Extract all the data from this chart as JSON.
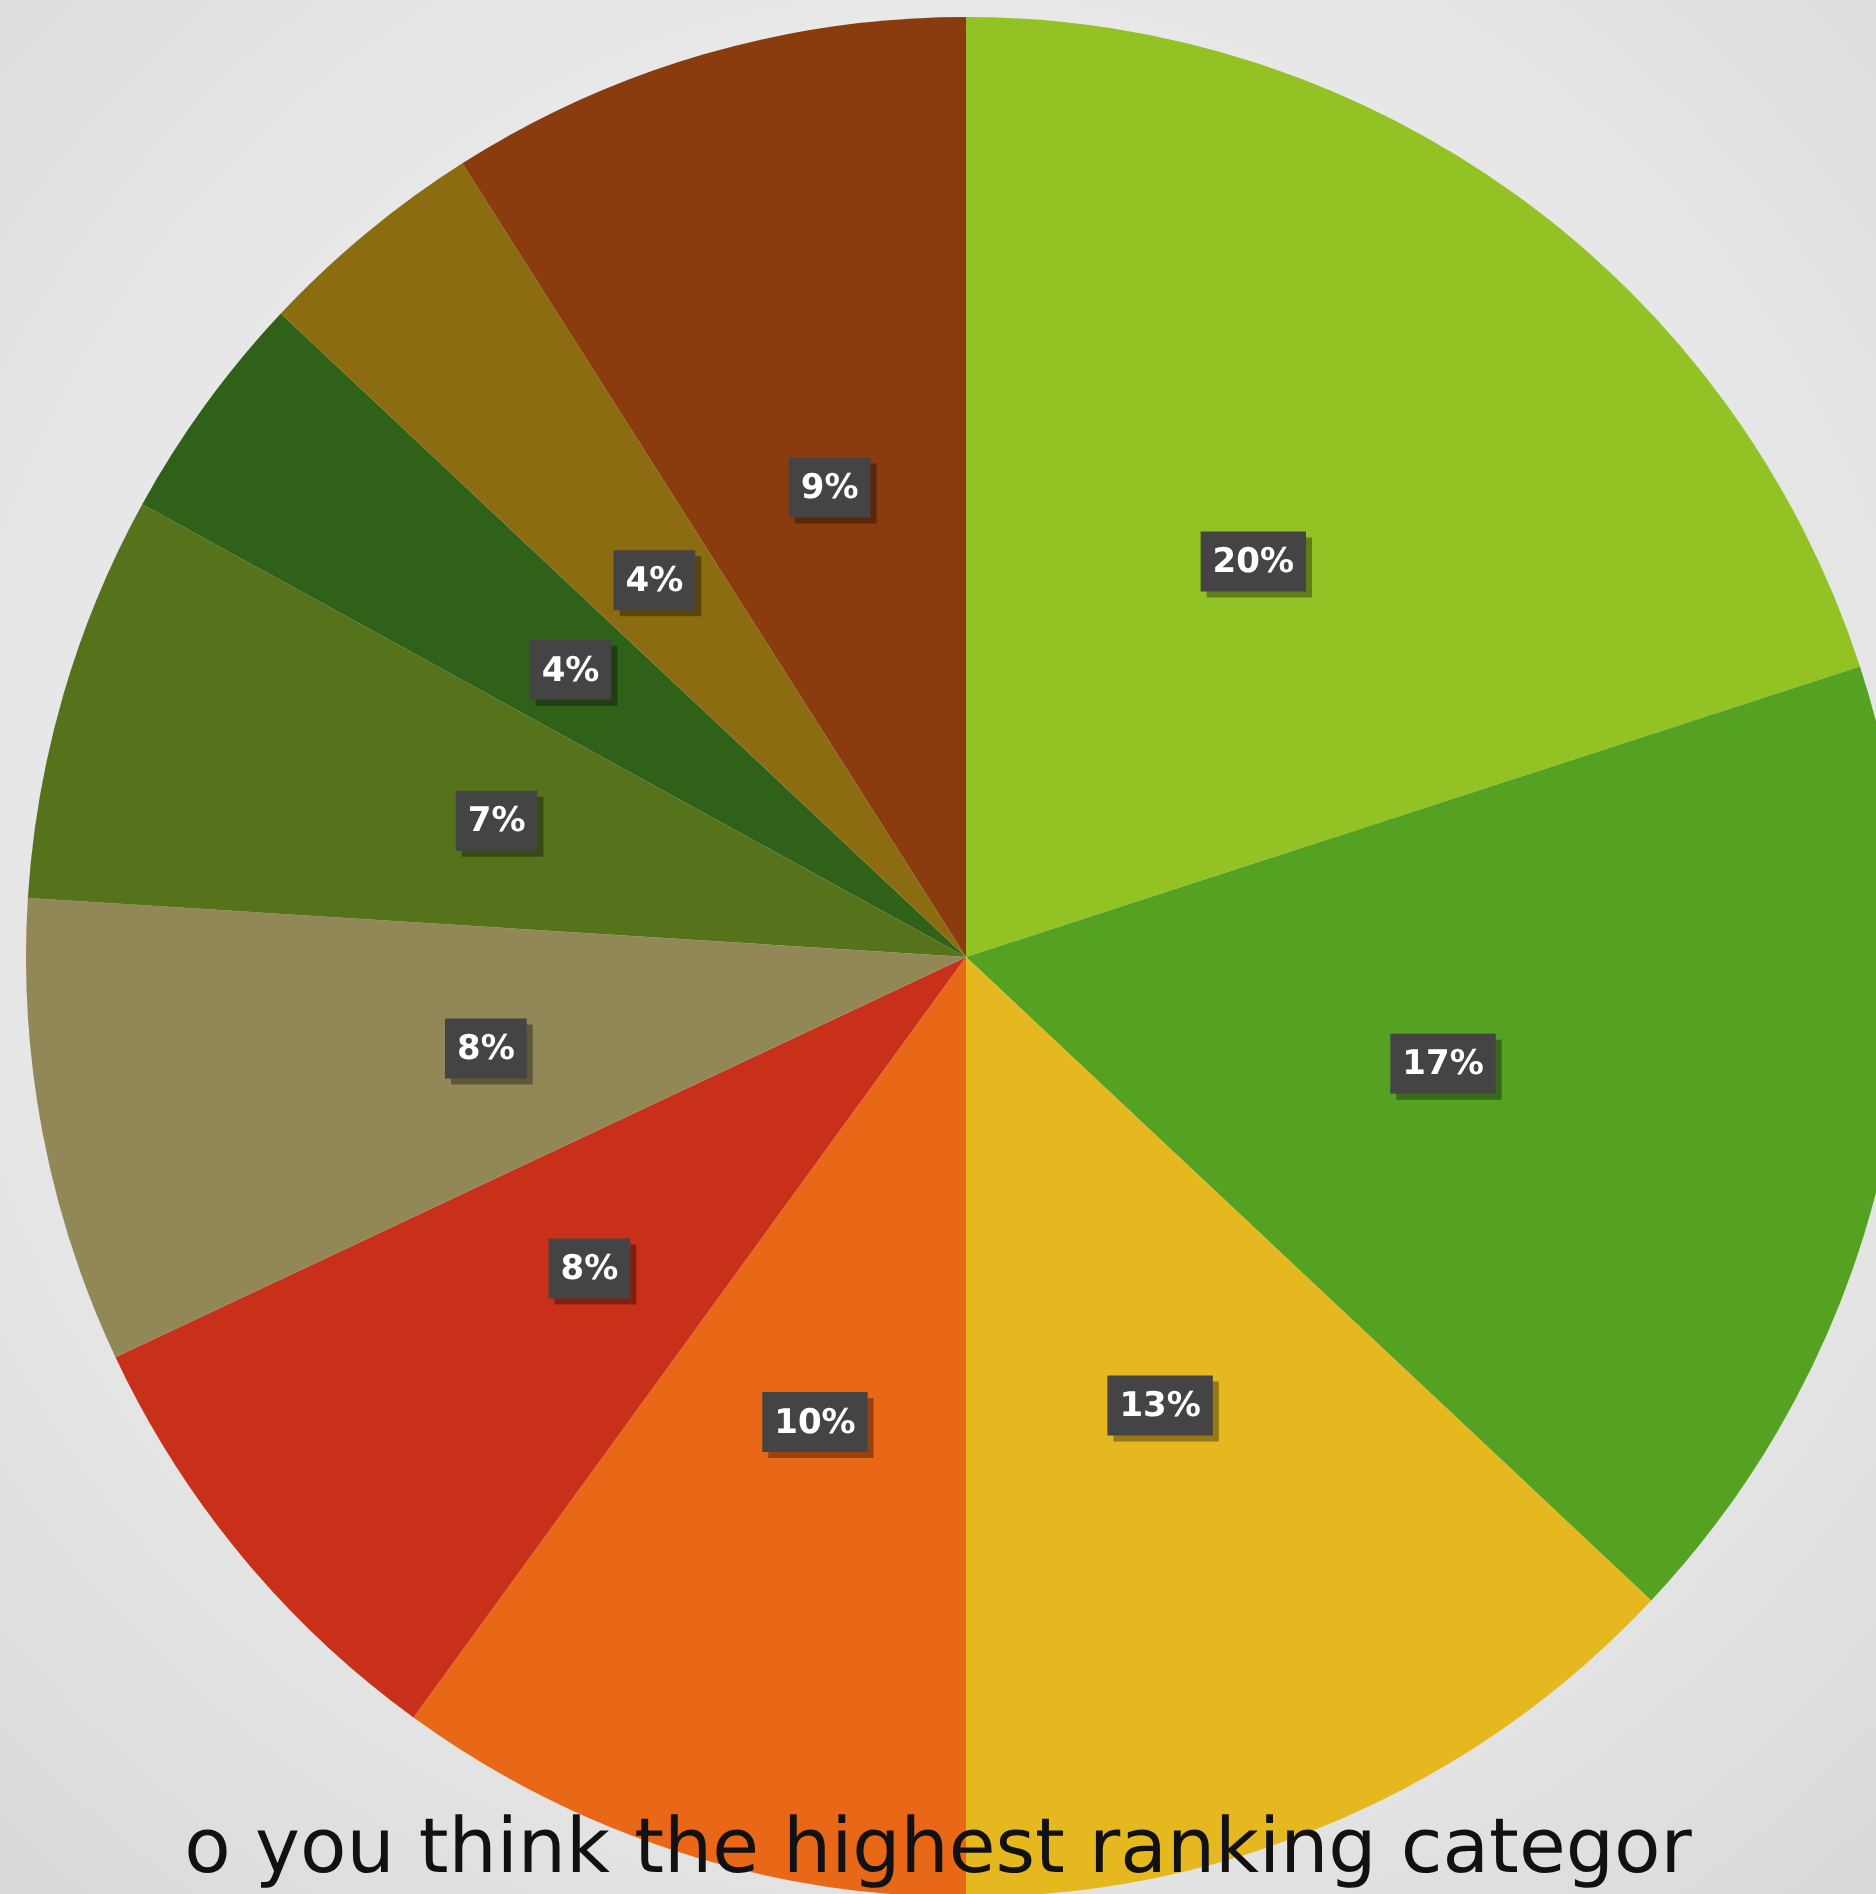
{
  "chart_data": {
    "type": "pie",
    "title": "o you think the highest ranking categor",
    "categories": [
      null,
      null,
      null,
      null,
      null,
      null,
      null,
      null,
      null,
      null
    ],
    "values": [
      20,
      17,
      13,
      10,
      8,
      8,
      7,
      4,
      4,
      9
    ],
    "colors": [
      "#93c225",
      "#55a122",
      "#e6b820",
      "#e86818",
      "#c8301a",
      "#928756",
      "#56731c",
      "#2f6218",
      "#8c6c10",
      "#8b3c0e"
    ],
    "value_labels": [
      "20%",
      "17%",
      "13%",
      "10%",
      "8%",
      "8%",
      "7%",
      "4%",
      "4%",
      "9%"
    ],
    "legend": false
  }
}
